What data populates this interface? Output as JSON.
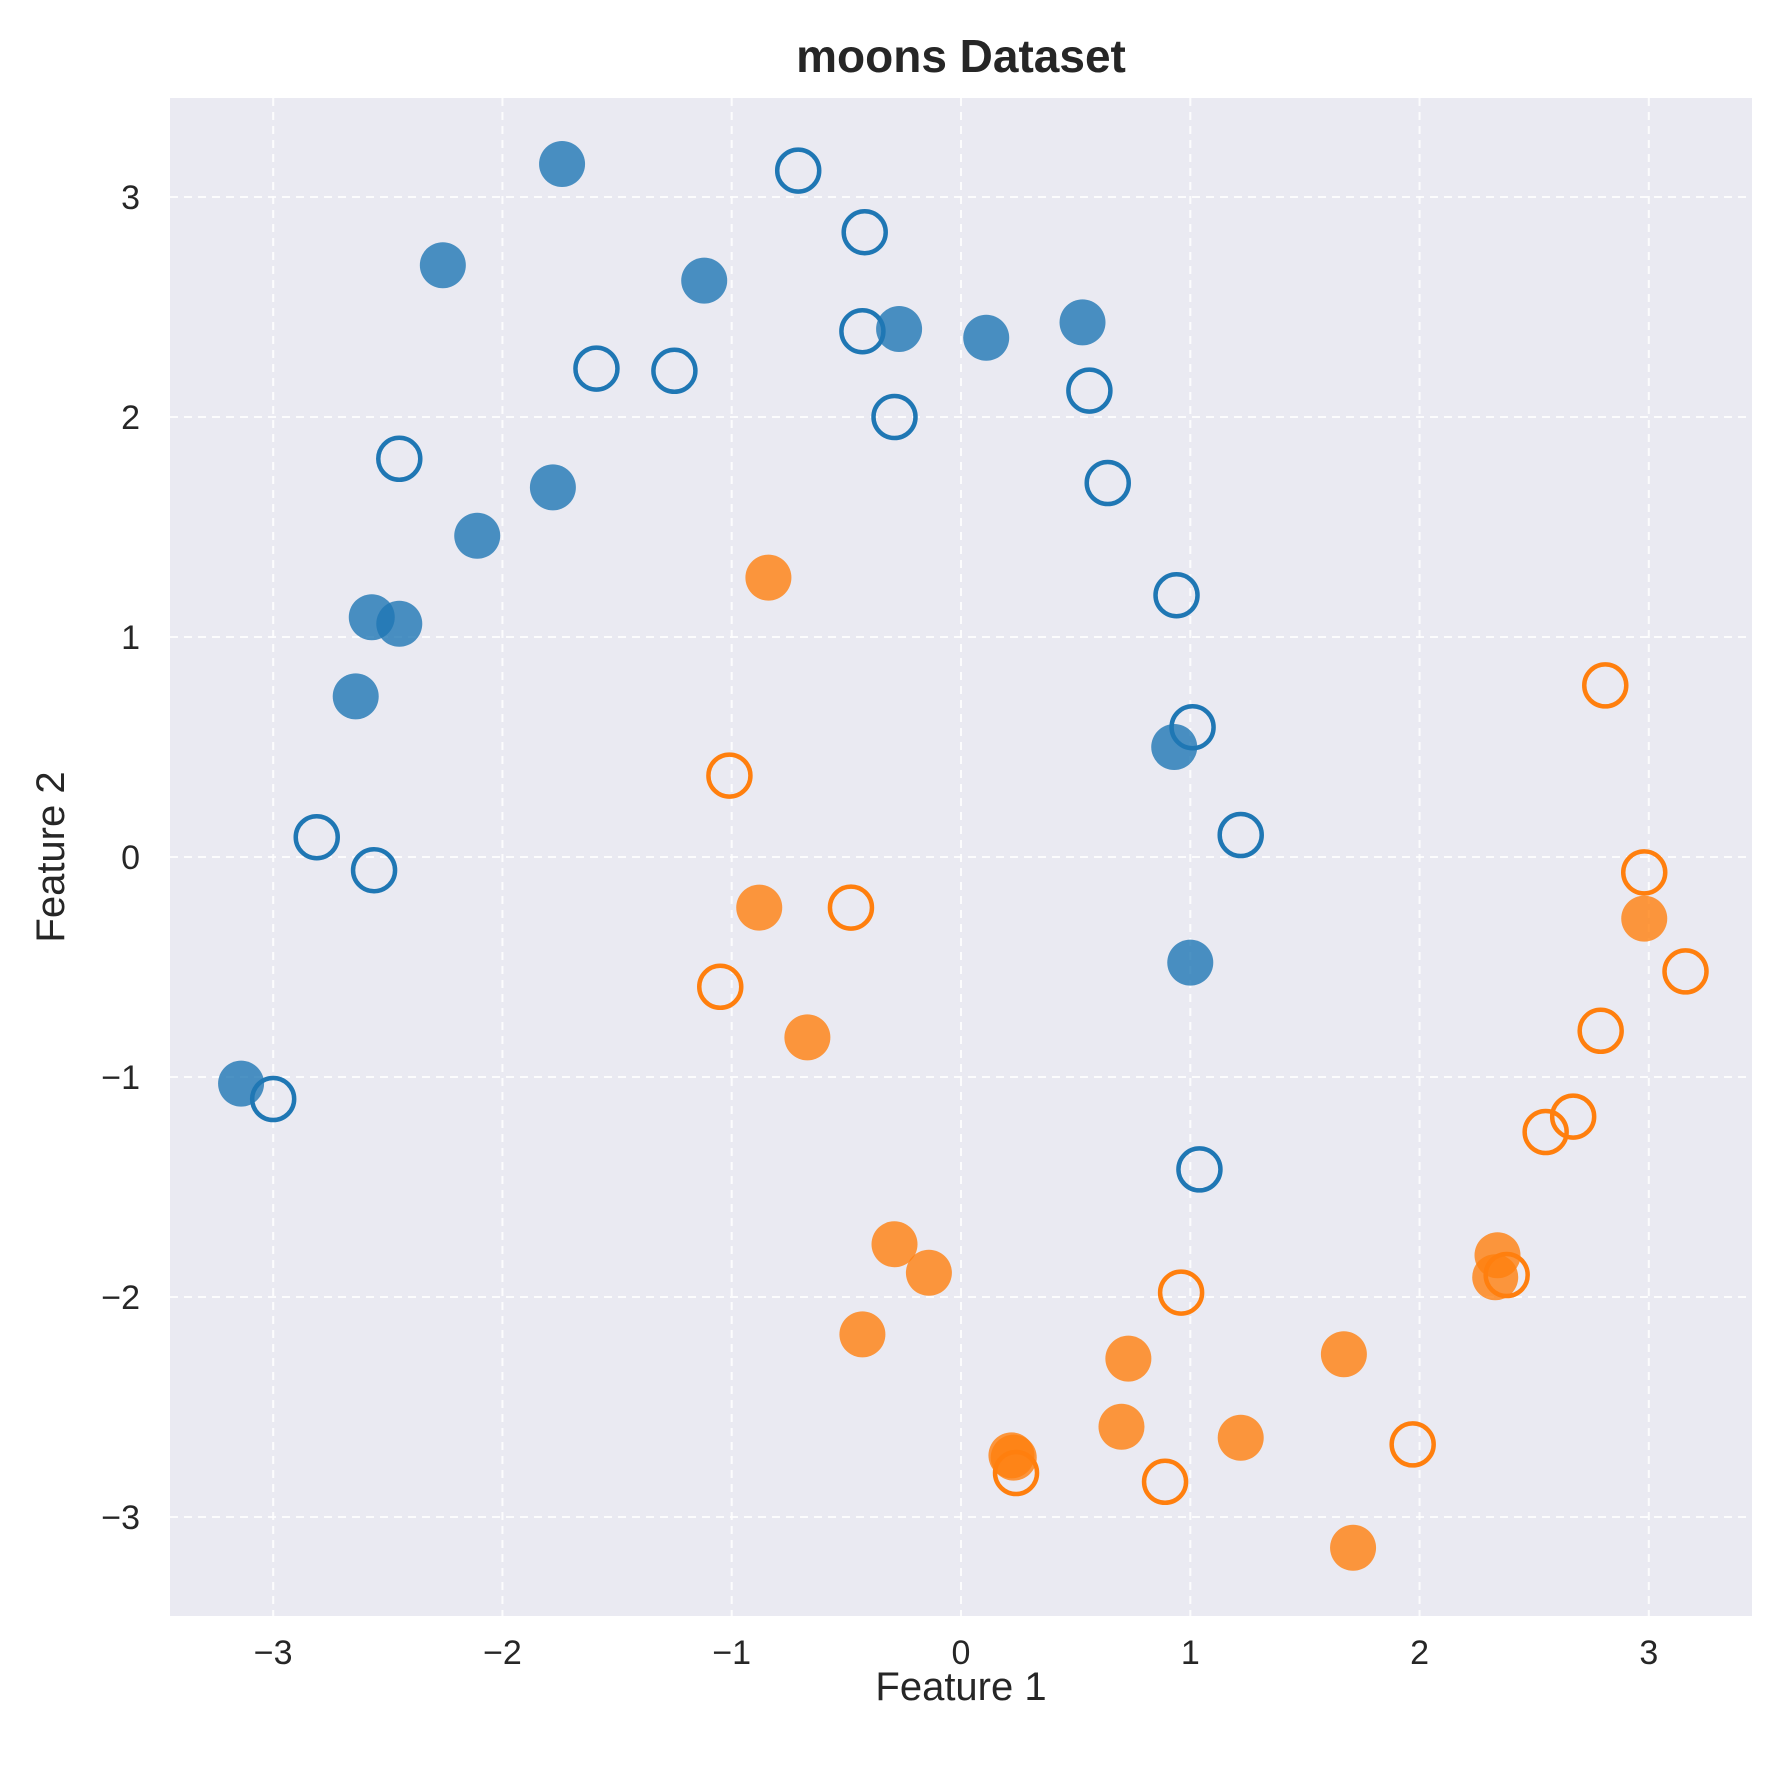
{
  "chart_data": {
    "type": "scatter",
    "title": "moons Dataset",
    "xlabel": "Feature 1",
    "ylabel": "Feature 2",
    "xlim": [
      -3.45,
      3.45
    ],
    "ylim": [
      -3.45,
      3.45
    ],
    "xticks": [
      -3,
      -2,
      -1,
      0,
      1,
      2,
      3
    ],
    "yticks": [
      -3,
      -2,
      -1,
      0,
      1,
      2,
      3
    ],
    "xtick_labels": [
      "−3",
      "−2",
      "−1",
      "0",
      "1",
      "2",
      "3"
    ],
    "ytick_labels": [
      "−3",
      "−2",
      "−1",
      "0",
      "1",
      "2",
      "3"
    ],
    "grid": true,
    "background": "#eaeaf2",
    "series": [
      {
        "color": "#1f77b4",
        "marker": "filled",
        "points": [
          [
            -1.74,
            3.15
          ],
          [
            -2.26,
            2.69
          ],
          [
            -1.12,
            2.62
          ],
          [
            -0.27,
            2.4
          ],
          [
            0.11,
            2.36
          ],
          [
            0.53,
            2.43
          ],
          [
            -1.78,
            1.68
          ],
          [
            -2.11,
            1.46
          ],
          [
            -2.57,
            1.09
          ],
          [
            -2.45,
            1.06
          ],
          [
            -2.64,
            0.73
          ],
          [
            0.93,
            0.5
          ],
          [
            1.0,
            -0.48
          ],
          [
            -3.14,
            -1.03
          ]
        ]
      },
      {
        "color": "#1f77b4",
        "marker": "hollow",
        "points": [
          [
            -0.71,
            3.12
          ],
          [
            -0.42,
            2.84
          ],
          [
            -0.43,
            2.39
          ],
          [
            -1.59,
            2.22
          ],
          [
            -1.25,
            2.21
          ],
          [
            -0.29,
            2.0
          ],
          [
            0.56,
            2.12
          ],
          [
            0.64,
            1.7
          ],
          [
            -2.45,
            1.81
          ],
          [
            0.94,
            1.19
          ],
          [
            1.01,
            0.59
          ],
          [
            1.22,
            0.1
          ],
          [
            -2.81,
            0.09
          ],
          [
            -2.56,
            -0.06
          ],
          [
            -3.0,
            -1.1
          ],
          [
            1.04,
            -1.42
          ]
        ]
      },
      {
        "color": "#ff7f0e",
        "marker": "filled",
        "points": [
          [
            -0.84,
            1.27
          ],
          [
            -0.88,
            -0.23
          ],
          [
            -0.67,
            -0.82
          ],
          [
            2.98,
            -0.28
          ],
          [
            -0.29,
            -1.76
          ],
          [
            -0.14,
            -1.89
          ],
          [
            2.34,
            -1.81
          ],
          [
            2.33,
            -1.91
          ],
          [
            -0.43,
            -2.17
          ],
          [
            0.73,
            -2.28
          ],
          [
            1.67,
            -2.26
          ],
          [
            0.7,
            -2.59
          ],
          [
            1.22,
            -2.64
          ],
          [
            0.22,
            -2.72
          ],
          [
            0.23,
            -2.73
          ],
          [
            1.71,
            -3.14
          ]
        ]
      },
      {
        "color": "#ff7f0e",
        "marker": "hollow",
        "points": [
          [
            2.81,
            0.78
          ],
          [
            -1.01,
            0.37
          ],
          [
            -0.48,
            -0.23
          ],
          [
            2.98,
            -0.07
          ],
          [
            3.16,
            -0.52
          ],
          [
            -1.05,
            -0.59
          ],
          [
            2.79,
            -0.79
          ],
          [
            2.67,
            -1.18
          ],
          [
            2.55,
            -1.25
          ],
          [
            2.38,
            -1.9
          ],
          [
            0.96,
            -1.98
          ],
          [
            1.97,
            -2.67
          ],
          [
            0.24,
            -2.8
          ],
          [
            0.89,
            -2.84
          ]
        ]
      }
    ]
  }
}
